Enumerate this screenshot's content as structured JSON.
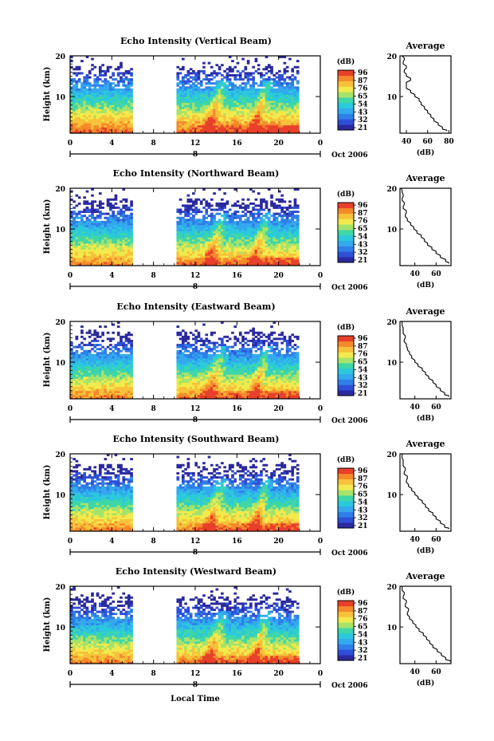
{
  "colors": {
    "scale": [
      "#2b2a9e",
      "#2f4fd6",
      "#2f7fe8",
      "#33a9ee",
      "#2ac9dc",
      "#3fd6a8",
      "#a6e36a",
      "#f2ea4c",
      "#f7c23a",
      "#f58a2a",
      "#e8402a"
    ],
    "ink": "#000000",
    "background": "#ffffff"
  },
  "figure": {
    "xlabel": "Local Time",
    "date_label": "Oct 2006",
    "day_label": "8",
    "colorbar_unit": "(dB)",
    "colorbar_ticks": [
      "96",
      "87",
      "76",
      "65",
      "54",
      "43",
      "32",
      "21"
    ],
    "avg_title": "Average",
    "avg_xlabel": "(dB)"
  },
  "chart_data": [
    {
      "type": "heatmap",
      "title": "Echo Intensity (Vertical Beam)",
      "ylabel": "Height (km)",
      "xlabel": "",
      "x_ticks": [
        "0",
        "4",
        "8",
        "12",
        "16",
        "20",
        "0"
      ],
      "xlim": [
        0,
        24
      ],
      "y_ticks": [
        "20",
        "10"
      ],
      "ylim": [
        1,
        20
      ],
      "data_gap_hours": [
        5.8,
        10.2
      ],
      "data_end_hour": 21.8,
      "z_range_db": [
        21,
        96
      ],
      "average_profile": {
        "x_ticks": [
          "40",
          "60",
          "80"
        ],
        "xlim": [
          34,
          82
        ],
        "y_ticks": [
          "20",
          "10"
        ],
        "heights_km": [
          1.5,
          2,
          3,
          4,
          5,
          6,
          7,
          8,
          9,
          10,
          11,
          12,
          13,
          14,
          15,
          16,
          17,
          18,
          19,
          20
        ],
        "values_db": [
          78,
          74,
          70,
          66,
          63,
          60,
          57,
          54,
          52,
          48,
          44,
          40,
          40,
          44,
          40,
          38,
          40,
          37,
          38,
          36
        ]
      }
    },
    {
      "type": "heatmap",
      "title": "Echo Intensity (Northward Beam)",
      "ylabel": "Height (km)",
      "xlabel": "",
      "x_ticks": [
        "0",
        "4",
        "8",
        "12",
        "16",
        "20",
        "0"
      ],
      "xlim": [
        0,
        24
      ],
      "y_ticks": [
        "20",
        "10"
      ],
      "ylim": [
        1,
        20
      ],
      "data_gap_hours": [
        5.8,
        10.2
      ],
      "data_end_hour": 21.8,
      "z_range_db": [
        21,
        96
      ],
      "average_profile": {
        "x_ticks": [
          "40",
          "60"
        ],
        "xlim": [
          26,
          74
        ],
        "y_ticks": [
          "20",
          "10"
        ],
        "heights_km": [
          1.5,
          2,
          3,
          4,
          5,
          6,
          7,
          8,
          9,
          10,
          11,
          12,
          13,
          14,
          15,
          16,
          17,
          18,
          19,
          20
        ],
        "values_db": [
          72,
          69,
          64,
          60,
          56,
          52,
          49,
          46,
          42,
          39,
          36,
          33,
          31,
          32,
          29,
          30,
          28,
          29,
          28,
          27
        ]
      }
    },
    {
      "type": "heatmap",
      "title": "Echo Intensity (Eastward Beam)",
      "ylabel": "Height (km)",
      "xlabel": "",
      "x_ticks": [
        "0",
        "4",
        "8",
        "12",
        "16",
        "20",
        "0"
      ],
      "xlim": [
        0,
        24
      ],
      "y_ticks": [
        "20",
        "10"
      ],
      "ylim": [
        1,
        20
      ],
      "data_gap_hours": [
        5.8,
        10.2
      ],
      "data_end_hour": 21.8,
      "z_range_db": [
        21,
        96
      ],
      "average_profile": {
        "x_ticks": [
          "40",
          "60"
        ],
        "xlim": [
          26,
          74
        ],
        "y_ticks": [
          "20",
          "10"
        ],
        "heights_km": [
          1.5,
          2,
          3,
          4,
          5,
          6,
          7,
          8,
          9,
          10,
          11,
          12,
          13,
          14,
          15,
          16,
          17,
          18,
          19,
          20
        ],
        "values_db": [
          72,
          68,
          64,
          60,
          57,
          53,
          50,
          47,
          43,
          40,
          37,
          35,
          33,
          32,
          30,
          31,
          29,
          29,
          28,
          28
        ]
      }
    },
    {
      "type": "heatmap",
      "title": "Echo Intensity (Southward Beam)",
      "ylabel": "Height (km)",
      "xlabel": "",
      "x_ticks": [
        "0",
        "4",
        "8",
        "12",
        "16",
        "20",
        "0"
      ],
      "xlim": [
        0,
        24
      ],
      "y_ticks": [
        "20",
        "10"
      ],
      "ylim": [
        1,
        20
      ],
      "data_gap_hours": [
        5.8,
        10.2
      ],
      "data_end_hour": 21.8,
      "z_range_db": [
        21,
        96
      ],
      "average_profile": {
        "x_ticks": [
          "40",
          "60"
        ],
        "xlim": [
          26,
          74
        ],
        "y_ticks": [
          "20",
          "10"
        ],
        "heights_km": [
          1.5,
          2,
          3,
          4,
          5,
          6,
          7,
          8,
          9,
          10,
          11,
          12,
          13,
          14,
          15,
          16,
          17,
          18,
          19,
          20
        ],
        "values_db": [
          72,
          68,
          64,
          60,
          57,
          53,
          50,
          47,
          43,
          40,
          37,
          34,
          32,
          33,
          30,
          31,
          29,
          29,
          28,
          28
        ]
      }
    },
    {
      "type": "heatmap",
      "title": "Echo Intensity (Westward Beam)",
      "ylabel": "Height (km)",
      "xlabel": "Local Time",
      "x_ticks": [
        "0",
        "4",
        "8",
        "12",
        "16",
        "20",
        "0"
      ],
      "xlim": [
        0,
        24
      ],
      "y_ticks": [
        "20",
        "10"
      ],
      "ylim": [
        1,
        20
      ],
      "data_gap_hours": [
        5.8,
        10.2
      ],
      "data_end_hour": 21.8,
      "z_range_db": [
        21,
        96
      ],
      "average_profile": {
        "x_ticks": [
          "40",
          "60"
        ],
        "xlim": [
          26,
          74
        ],
        "y_ticks": [
          "20",
          "10"
        ],
        "heights_km": [
          1.5,
          2,
          3,
          4,
          5,
          6,
          7,
          8,
          9,
          10,
          11,
          12,
          13,
          14,
          15,
          16,
          17,
          18,
          19,
          20
        ],
        "values_db": [
          73,
          69,
          65,
          61,
          57,
          54,
          51,
          48,
          44,
          41,
          38,
          35,
          33,
          34,
          31,
          32,
          29,
          30,
          28,
          28
        ]
      }
    }
  ]
}
